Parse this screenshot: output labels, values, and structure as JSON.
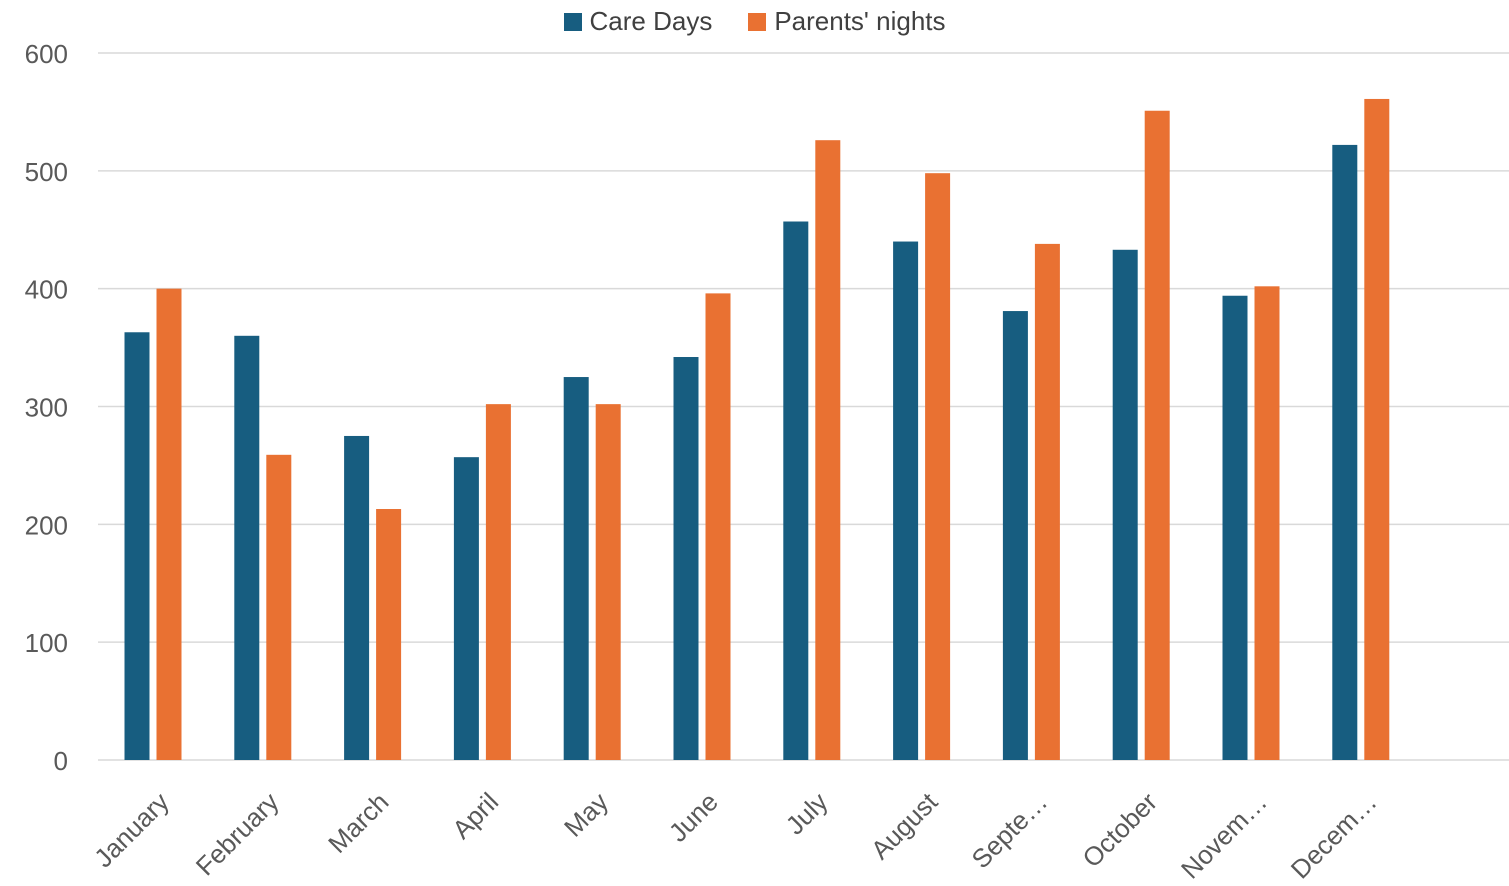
{
  "chart_data": {
    "type": "bar",
    "categories": [
      "January",
      "February",
      "March",
      "April",
      "May",
      "June",
      "July",
      "August",
      "Septe…",
      "October",
      "Novem…",
      "Decem…"
    ],
    "series": [
      {
        "name": "Care Days",
        "color": "#175d80",
        "values": [
          363,
          360,
          275,
          257,
          325,
          342,
          457,
          440,
          381,
          433,
          394,
          522
        ]
      },
      {
        "name": "Parents' nights",
        "color": "#e97132",
        "values": [
          400,
          259,
          213,
          302,
          302,
          396,
          526,
          498,
          438,
          551,
          402,
          561
        ]
      }
    ],
    "ylim": [
      0,
      600
    ],
    "yticks": [
      "0",
      "100",
      "200",
      "300",
      "400",
      "500",
      "600"
    ],
    "grid": true,
    "legend_position": "top-center",
    "title": "",
    "xlabel": "",
    "ylabel": ""
  }
}
